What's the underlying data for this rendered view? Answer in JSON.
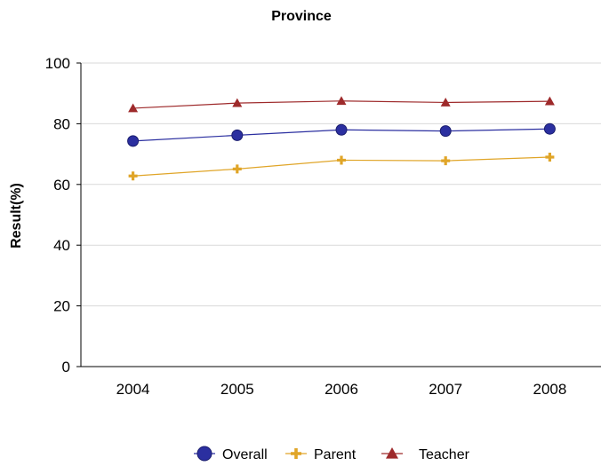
{
  "chart_data": {
    "type": "line",
    "title": "Province",
    "xlabel": "",
    "ylabel": "Result(%)",
    "categories": [
      "2004",
      "2005",
      "2006",
      "2007",
      "2008"
    ],
    "ylim": [
      0,
      100
    ],
    "yticks": [
      0,
      20,
      40,
      60,
      80,
      100
    ],
    "grid": true,
    "legend_position": "bottom",
    "series": [
      {
        "name": "Overall",
        "values": [
          74.3,
          76.2,
          78.0,
          77.6,
          78.3
        ],
        "color": "#2b2fa0",
        "marker": "circle"
      },
      {
        "name": "Parent",
        "values": [
          62.8,
          65.1,
          68.0,
          67.8,
          69.0
        ],
        "color": "#e0a528",
        "marker": "plus"
      },
      {
        "name": "Teacher",
        "values": [
          85.1,
          86.8,
          87.5,
          87.0,
          87.4
        ],
        "color": "#9e2a2b",
        "marker": "triangle"
      }
    ]
  }
}
